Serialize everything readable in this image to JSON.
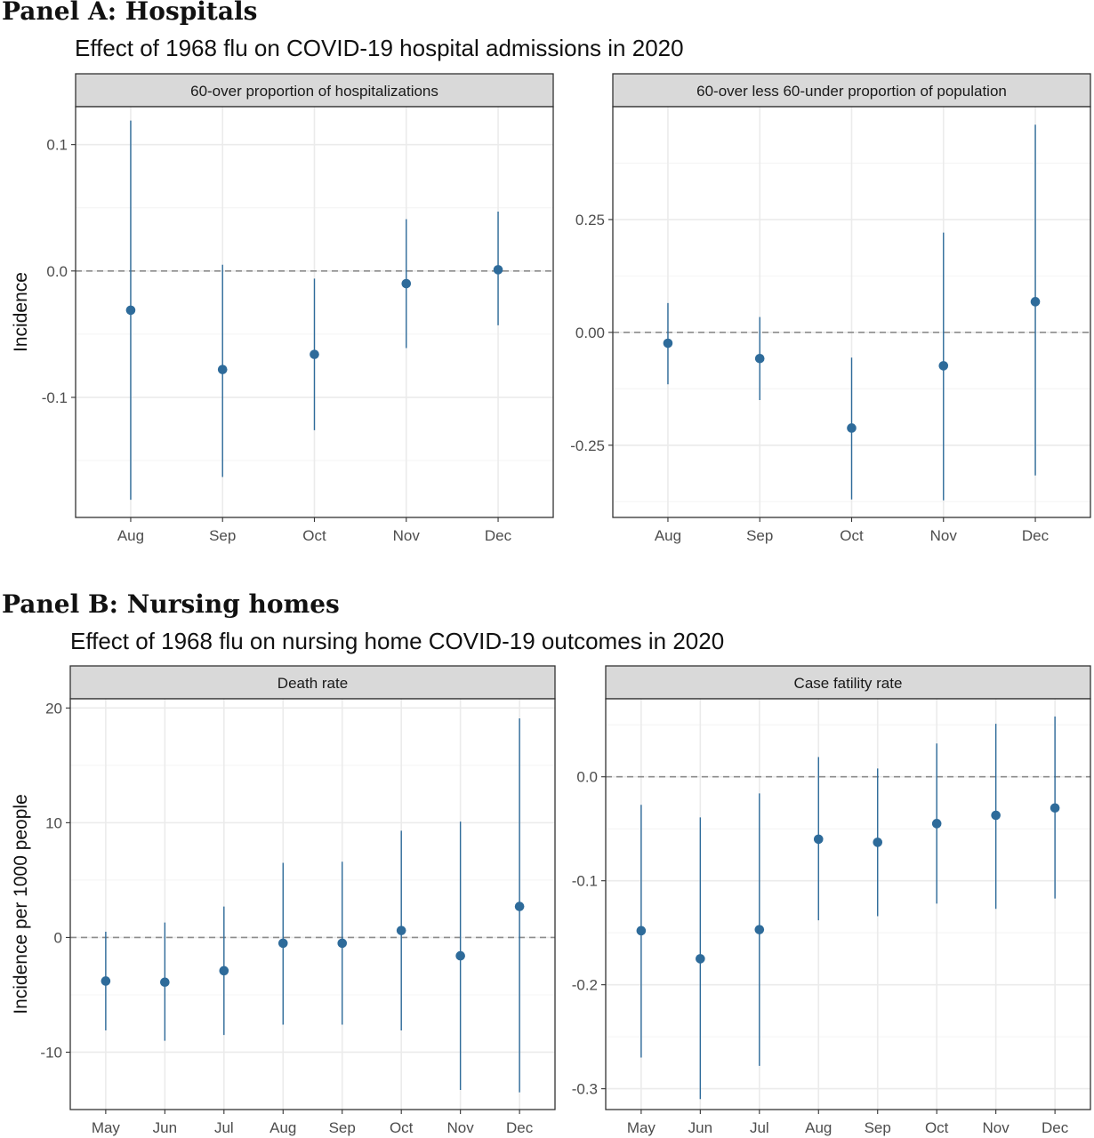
{
  "panels": [
    {
      "heading": "Panel A: Hospitals",
      "title": "Effect of 1968 flu on COVID-19 hospital admissions in 2020"
    },
    {
      "heading": "Panel B: Nursing homes",
      "title": "Effect of 1968 flu on nursing home COVID-19 outcomes in 2020"
    }
  ],
  "colors": {
    "series": "#2e6b9a",
    "strip": "#d9d9d9",
    "zero_line": "#8c8c8c"
  },
  "chart_data": [
    {
      "type": "scatter",
      "facet": "60-over proportion of hospitalizations",
      "ylabel": "Incidence",
      "categories": [
        "Aug",
        "Sep",
        "Oct",
        "Nov",
        "Dec"
      ],
      "yticks": [
        -0.1,
        0.0,
        0.1
      ],
      "ytick_labels": [
        "-0.1",
        "0.0",
        "0.1"
      ],
      "ylim": [
        -0.195,
        0.13
      ],
      "values": [
        -0.031,
        -0.078,
        -0.066,
        -0.01,
        0.001
      ],
      "ci_low": [
        -0.181,
        -0.163,
        -0.126,
        -0.061,
        -0.043
      ],
      "ci_high": [
        0.119,
        0.005,
        -0.006,
        0.041,
        0.047
      ],
      "reference_line": 0,
      "grid": true
    },
    {
      "type": "scatter",
      "facet": "60-over less 60-under proportion of population",
      "ylabel": "",
      "categories": [
        "Aug",
        "Sep",
        "Oct",
        "Nov",
        "Dec"
      ],
      "yticks": [
        -0.25,
        0.0,
        0.25
      ],
      "ytick_labels": [
        "-0.25",
        "0.00",
        "0.25"
      ],
      "ylim": [
        -0.41,
        0.5
      ],
      "values": [
        -0.024,
        -0.058,
        -0.212,
        -0.074,
        0.068
      ],
      "ci_low": [
        -0.115,
        -0.15,
        -0.37,
        -0.372,
        -0.317
      ],
      "ci_high": [
        0.065,
        0.034,
        -0.056,
        0.221,
        0.46
      ],
      "reference_line": 0,
      "grid": true
    },
    {
      "type": "scatter",
      "facet": "Death rate",
      "ylabel": "Incidence per 1000 people",
      "categories": [
        "May",
        "Jun",
        "Jul",
        "Aug",
        "Sep",
        "Oct",
        "Nov",
        "Dec"
      ],
      "yticks": [
        -10,
        0,
        10,
        20
      ],
      "ytick_labels": [
        "-10",
        "0",
        "10",
        "20"
      ],
      "ylim": [
        -15,
        20.8
      ],
      "values": [
        -3.8,
        -3.9,
        -2.9,
        -0.5,
        -0.5,
        0.6,
        -1.6,
        2.7
      ],
      "ci_low": [
        -8.1,
        -9.0,
        -8.5,
        -7.6,
        -7.6,
        -8.1,
        -13.3,
        -13.5
      ],
      "ci_high": [
        0.5,
        1.3,
        2.7,
        6.5,
        6.6,
        9.3,
        10.1,
        19.1
      ],
      "reference_line": 0,
      "grid": true
    },
    {
      "type": "scatter",
      "facet": "Case fatility rate",
      "ylabel": "",
      "categories": [
        "May",
        "Jun",
        "Jul",
        "Aug",
        "Sep",
        "Oct",
        "Nov",
        "Dec"
      ],
      "yticks": [
        -0.3,
        -0.2,
        -0.1,
        0.0
      ],
      "ytick_labels": [
        "-0.3",
        "-0.2",
        "-0.1",
        "0.0"
      ],
      "ylim": [
        -0.32,
        0.075
      ],
      "values": [
        -0.148,
        -0.175,
        -0.147,
        -0.06,
        -0.063,
        -0.045,
        -0.037,
        -0.03
      ],
      "ci_low": [
        -0.27,
        -0.31,
        -0.278,
        -0.138,
        -0.134,
        -0.122,
        -0.127,
        -0.117
      ],
      "ci_high": [
        -0.027,
        -0.039,
        -0.016,
        0.019,
        0.008,
        0.032,
        0.051,
        0.058
      ],
      "reference_line": 0,
      "grid": true
    }
  ]
}
